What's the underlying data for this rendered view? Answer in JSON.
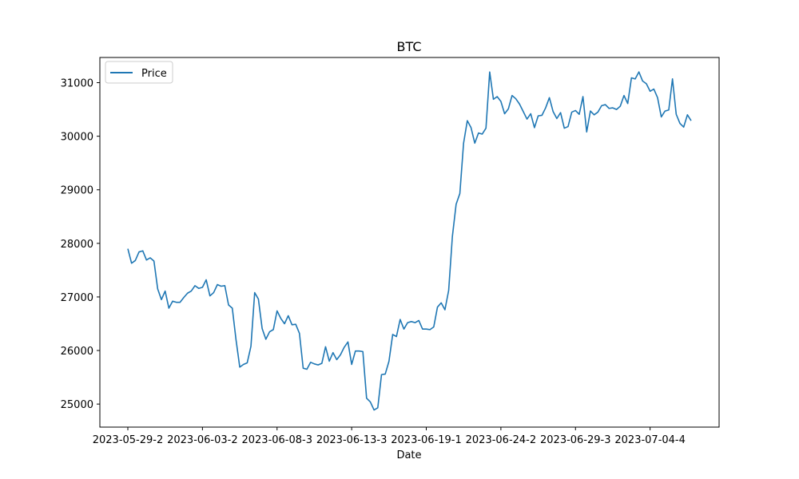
{
  "chart_data": {
    "type": "line",
    "title": "BTC",
    "xlabel": "Date",
    "ylabel": "",
    "ylim": [
      24570,
      31470
    ],
    "y_ticks": [
      25000,
      26000,
      27000,
      28000,
      29000,
      30000,
      31000
    ],
    "x_tick_labels": [
      "2023-05-29-2",
      "2023-06-03-2",
      "2023-06-08-3",
      "2023-06-13-3",
      "2023-06-19-1",
      "2023-06-24-2",
      "2023-06-29-3",
      "2023-07-04-4"
    ],
    "legend_position": "top-left",
    "grid": false,
    "series": [
      {
        "name": "Price",
        "color": "#1f77b4",
        "values": [
          27900,
          27630,
          27680,
          27840,
          27860,
          27690,
          27730,
          27670,
          27150,
          26950,
          27110,
          26790,
          26920,
          26900,
          26900,
          26990,
          27070,
          27110,
          27210,
          27160,
          27180,
          27320,
          27020,
          27080,
          27230,
          27200,
          27210,
          26850,
          26790,
          26200,
          25690,
          25740,
          25770,
          26080,
          27080,
          26960,
          26410,
          26210,
          26350,
          26390,
          26740,
          26600,
          26500,
          26650,
          26480,
          26490,
          26320,
          25670,
          25650,
          25780,
          25750,
          25730,
          25760,
          26070,
          25800,
          25960,
          25830,
          25920,
          26060,
          26160,
          25740,
          25990,
          25990,
          25980,
          25110,
          25040,
          24890,
          24930,
          25550,
          25560,
          25800,
          26300,
          26260,
          26580,
          26400,
          26520,
          26540,
          26520,
          26560,
          26400,
          26400,
          26390,
          26440,
          26810,
          26890,
          26760,
          27120,
          28130,
          28730,
          28930,
          29870,
          30290,
          30160,
          29870,
          30060,
          30040,
          30150,
          31200,
          30690,
          30740,
          30650,
          30420,
          30510,
          30760,
          30700,
          30600,
          30460,
          30320,
          30420,
          30160,
          30380,
          30390,
          30530,
          30720,
          30460,
          30330,
          30440,
          30150,
          30180,
          30450,
          30480,
          30410,
          30740,
          30080,
          30470,
          30400,
          30450,
          30570,
          30590,
          30520,
          30530,
          30500,
          30560,
          30760,
          30610,
          31090,
          31070,
          31200,
          31030,
          30980,
          30840,
          30880,
          30720,
          30360,
          30470,
          30490,
          31070,
          30410,
          30240,
          30170,
          30400,
          30290
        ]
      }
    ]
  }
}
